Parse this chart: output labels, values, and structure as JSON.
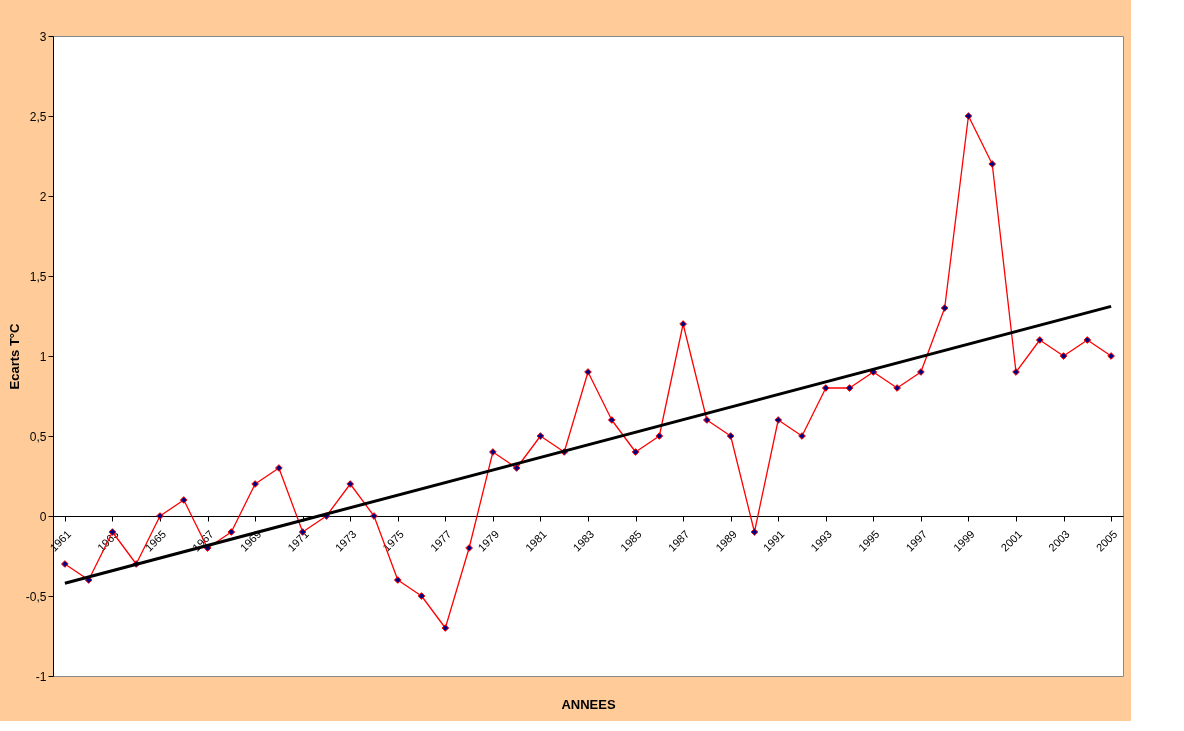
{
  "chart_data": {
    "type": "line",
    "xlabel": "ANNEES",
    "ylabel": "Ecarts T°C",
    "x": [
      1961,
      1962,
      1963,
      1964,
      1965,
      1966,
      1967,
      1968,
      1969,
      1970,
      1971,
      1972,
      1973,
      1974,
      1975,
      1976,
      1977,
      1978,
      1979,
      1980,
      1981,
      1982,
      1983,
      1984,
      1985,
      1986,
      1987,
      1988,
      1989,
      1990,
      1991,
      1992,
      1993,
      1994,
      1995,
      1996,
      1997,
      1998,
      1999,
      2000,
      2001,
      2002,
      2003,
      2004,
      2005
    ],
    "series": [
      {
        "color": "#ff0000",
        "marker": "diamond",
        "values": [
          -0.3,
          -0.4,
          -0.1,
          -0.3,
          0,
          0.1,
          -0.2,
          -0.1,
          0.2,
          0.3,
          -0.1,
          0,
          0.2,
          0,
          -0.4,
          -0.5,
          -0.7,
          -0.2,
          0.4,
          0.3,
          0.5,
          0.4,
          0.9,
          0.6,
          0.4,
          0.5,
          1.2,
          0.6,
          0.5,
          -0.1,
          0.6,
          0.5,
          0.8,
          0.8,
          0.9,
          0.8,
          0.9,
          1.3,
          2.5,
          2.2,
          0.9,
          1.1,
          1.0,
          1.1,
          1.0
        ]
      },
      {
        "type": "line",
        "color": "#000000",
        "marker": "none",
        "x": [
          1961,
          2005
        ],
        "values": [
          -0.42,
          1.31
        ]
      }
    ],
    "xlim": [
      1960.5,
      2005.5
    ],
    "xticks": [
      1961,
      1963,
      1965,
      1967,
      1969,
      1971,
      1973,
      1975,
      1977,
      1979,
      1981,
      1983,
      1985,
      1987,
      1989,
      1991,
      1993,
      1995,
      1997,
      1999,
      2001,
      2003,
      2005
    ],
    "ylim": [
      -1,
      3
    ],
    "yticks": [
      -1,
      {
        "value": -0.5,
        "label": "-0,5"
      },
      0,
      {
        "value": 0.5,
        "label": "0,5"
      },
      1,
      {
        "value": 1.5,
        "label": "1,5"
      },
      2,
      {
        "value": 2.5,
        "label": "2,5"
      },
      3
    ],
    "grid": false
  }
}
